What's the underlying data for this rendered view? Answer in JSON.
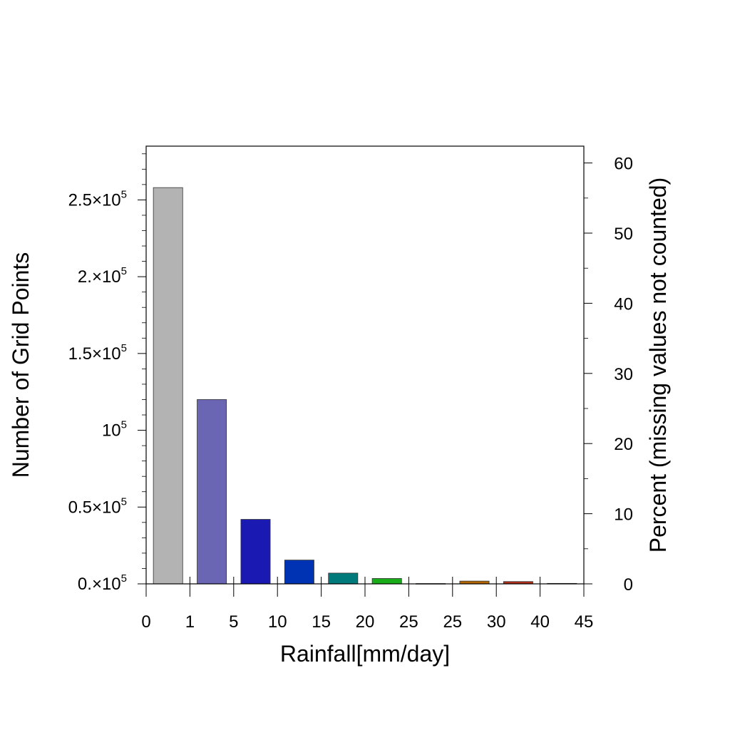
{
  "chart_data": {
    "type": "bar",
    "title": "",
    "xlabel": "Rainfall[mm/day]",
    "ylabel": "Number of Grid Points",
    "y2label": "Percent (missing values not counted)",
    "x_tick_labels": [
      "0",
      "1",
      "5",
      "10",
      "15",
      "20",
      "25",
      "25",
      "30",
      "40",
      "45"
    ],
    "bins": [
      {
        "range": [
          "0",
          "1"
        ],
        "value": 258000,
        "color": "#b3b3b3"
      },
      {
        "range": [
          "1",
          "5"
        ],
        "value": 120000,
        "color": "#6a66b3"
      },
      {
        "range": [
          "5",
          "10"
        ],
        "value": 42000,
        "color": "#1a1ab3"
      },
      {
        "range": [
          "10",
          "15"
        ],
        "value": 15500,
        "color": "#0033b3"
      },
      {
        "range": [
          "15",
          "20"
        ],
        "value": 7000,
        "color": "#007a7a"
      },
      {
        "range": [
          "20",
          "25"
        ],
        "value": 3500,
        "color": "#1aad1a"
      },
      {
        "range": [
          "25",
          "25"
        ],
        "value": 200,
        "color": "#7a7a00"
      },
      {
        "range": [
          "25",
          "30"
        ],
        "value": 1800,
        "color": "#b36600"
      },
      {
        "range": [
          "30",
          "40"
        ],
        "value": 1500,
        "color": "#b32e1a"
      },
      {
        "range": [
          "40",
          "45"
        ],
        "value": 300,
        "color": "#7a3300"
      }
    ],
    "ylim": [
      0,
      285000
    ],
    "y_ticks": [
      {
        "value": 0,
        "mantissa": "0.",
        "exp": "5"
      },
      {
        "value": 50000,
        "mantissa": "0.5",
        "exp": "5"
      },
      {
        "value": 100000,
        "mantissa": "",
        "exp": "5"
      },
      {
        "value": 150000,
        "mantissa": "1.5",
        "exp": "5"
      },
      {
        "value": 200000,
        "mantissa": "2.",
        "exp": "5"
      },
      {
        "value": 250000,
        "mantissa": "2.5",
        "exp": "5"
      }
    ],
    "y_minor_step": 10000,
    "y2lim": [
      0,
      62.4
    ],
    "y2_ticks": [
      "0",
      "10",
      "20",
      "30",
      "40",
      "50",
      "60"
    ],
    "y2_minor_step": 5,
    "grid": false,
    "legend": "none"
  }
}
